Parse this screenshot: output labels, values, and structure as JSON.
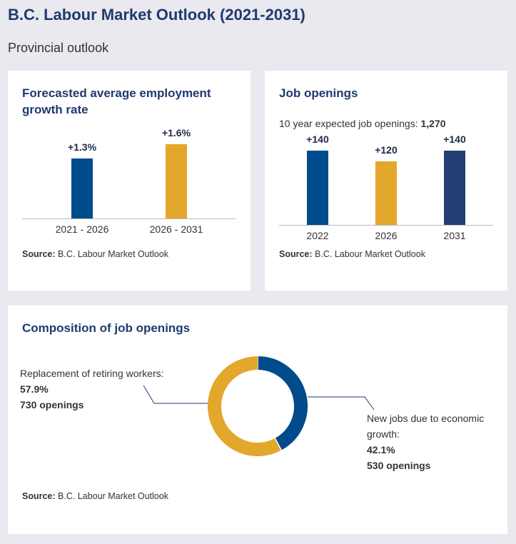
{
  "header": {
    "title": "B.C. Labour Market Outlook (2021-2031)",
    "subtitle": "Provincial outlook"
  },
  "source": {
    "label": "Source:",
    "text": "B.C. Labour Market Outlook"
  },
  "colors": {
    "blue": "#004b8c",
    "gold": "#e3a72c",
    "navy": "#233e72"
  },
  "chart_data": [
    {
      "type": "bar",
      "title": "Forecasted average employment growth rate",
      "categories": [
        "2021 - 2026",
        "2026 - 2031"
      ],
      "values": [
        1.3,
        1.6
      ],
      "data_labels": [
        "+1.3%",
        "+1.6%"
      ],
      "colors": [
        "#004b8c",
        "#e3a72c"
      ],
      "ylim": [
        0,
        1.6
      ]
    },
    {
      "type": "bar",
      "title": "Job openings",
      "subtitle_label": "10 year expected job openings:",
      "subtitle_value": "1,270",
      "categories": [
        "2022",
        "2026",
        "2031"
      ],
      "values": [
        140,
        120,
        140
      ],
      "data_labels": [
        "+140",
        "+120",
        "+140"
      ],
      "colors": [
        "#004b8c",
        "#e3a72c",
        "#233e72"
      ],
      "ylim": [
        0,
        140
      ]
    },
    {
      "type": "pie",
      "title": "Composition of job openings",
      "slices": [
        {
          "label": "New jobs due to economic growth:",
          "percent": "42.1%",
          "value": 42.1,
          "openings": "530 openings",
          "color": "#004b8c"
        },
        {
          "label": "Replacement of retiring workers:",
          "percent": "57.9%",
          "value": 57.9,
          "openings": "730 openings",
          "color": "#e3a72c"
        }
      ]
    }
  ]
}
